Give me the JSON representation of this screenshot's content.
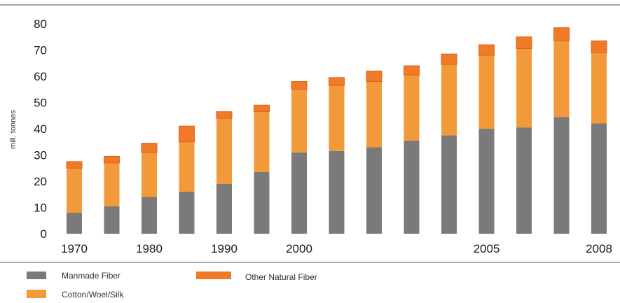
{
  "chart_data": {
    "type": "bar",
    "stacked": true,
    "ylabel": "mill. tonnes",
    "ylim": [
      0,
      80
    ],
    "yticks": [
      0,
      10,
      20,
      30,
      40,
      50,
      60,
      70,
      80
    ],
    "grid": false,
    "legend_position": "bottom",
    "x_tick_labels": [
      "1970",
      "",
      "1980",
      "",
      "1990",
      "",
      "2000",
      "",
      "",
      "",
      "",
      "2005",
      "",
      "",
      "2008"
    ],
    "series": [
      {
        "name": "Manmade Fiber",
        "color": "#7a7a7a",
        "values": [
          8,
          10.5,
          14,
          16,
          19,
          23.5,
          31,
          31.5,
          33,
          35.5,
          37.5,
          40,
          40.5,
          44.5,
          42
        ]
      },
      {
        "name": "Cotton/Wool/Silk",
        "color": "#f29a3a",
        "values": [
          17,
          16.5,
          17,
          19,
          25,
          23,
          24,
          25,
          25,
          25,
          27,
          28,
          30,
          29,
          27
        ]
      },
      {
        "name": "Other Natural Fiber",
        "color": "#f07a28",
        "values": [
          2.5,
          2.5,
          3.5,
          6,
          2.5,
          2.5,
          3,
          3,
          4,
          3.5,
          4,
          4,
          4.5,
          5,
          4.5
        ]
      }
    ],
    "legend_labels": {
      "manmade": "Manmade Fiber",
      "cotton": "Cotton/Woel/Silk",
      "other": "Other Natural Fiber"
    }
  }
}
